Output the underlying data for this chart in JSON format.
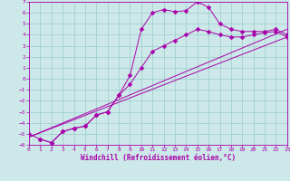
{
  "title": "",
  "xlabel": "Windchill (Refroidissement éolien,°C)",
  "xlim": [
    0,
    23
  ],
  "ylim": [
    -6,
    7
  ],
  "xticks": [
    0,
    1,
    2,
    3,
    4,
    5,
    6,
    7,
    8,
    9,
    10,
    11,
    12,
    13,
    14,
    15,
    16,
    17,
    18,
    19,
    20,
    21,
    22,
    23
  ],
  "yticks": [
    -6,
    -5,
    -4,
    -3,
    -2,
    -1,
    0,
    1,
    2,
    3,
    4,
    5,
    6,
    7
  ],
  "bg_color": "#cce8e8",
  "line_color": "#aa00aa",
  "grid_color": "#99cccc",
  "series": [
    {
      "x": [
        1,
        2,
        3,
        4,
        5,
        6,
        7,
        8,
        9,
        10,
        11,
        12,
        13,
        14,
        15,
        16,
        17,
        18,
        19,
        20,
        21,
        22,
        23
      ],
      "y": [
        -5.5,
        -5.8,
        -4.8,
        -4.5,
        -4.3,
        -3.3,
        -3.0,
        -1.5,
        0.3,
        4.5,
        6.0,
        6.3,
        6.1,
        6.2,
        7.0,
        6.5,
        5.0,
        4.5,
        4.3,
        4.3,
        4.3,
        4.5,
        4.0
      ],
      "marker": "D",
      "markersize": 2.5
    },
    {
      "x": [
        0,
        1,
        2,
        3,
        4,
        5,
        6,
        7,
        8,
        9,
        10,
        11,
        12,
        13,
        14,
        15,
        16,
        17,
        18,
        19,
        20,
        21,
        22,
        23
      ],
      "y": [
        -5.0,
        -5.5,
        -5.8,
        -4.8,
        -4.5,
        -4.3,
        -3.3,
        -3.0,
        -1.5,
        -0.5,
        1.0,
        2.5,
        3.0,
        3.5,
        4.0,
        4.5,
        4.3,
        4.0,
        3.8,
        3.8,
        4.0,
        4.2,
        4.3,
        3.8
      ],
      "marker": "D",
      "markersize": 2.5
    },
    {
      "x": [
        0,
        23
      ],
      "y": [
        -5.3,
        3.8
      ],
      "marker": null,
      "markersize": 0
    },
    {
      "x": [
        0,
        23
      ],
      "y": [
        -5.3,
        4.5
      ],
      "marker": null,
      "markersize": 0
    }
  ]
}
